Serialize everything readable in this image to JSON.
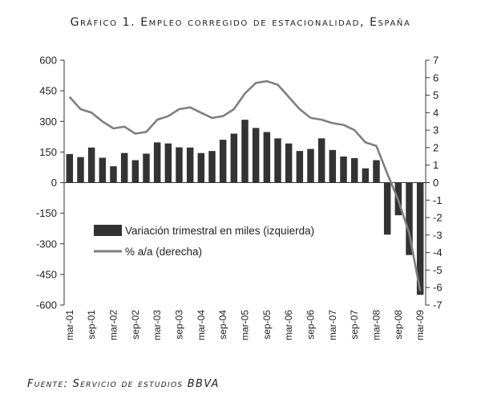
{
  "title": "Gráfico 1. Empleo corregido de estacionalidad, España",
  "source": "Fuente: Servicio de estudios BBVA",
  "chart_data": {
    "type": "bar",
    "quarters": [
      "mar-01",
      "jun-01",
      "sep-01",
      "dic-01",
      "mar-02",
      "jun-02",
      "sep-02",
      "dic-02",
      "mar-03",
      "jun-03",
      "sep-03",
      "dic-03",
      "mar-04",
      "jun-04",
      "sep-04",
      "dic-04",
      "mar-05",
      "jun-05",
      "sep-05",
      "dic-05",
      "mar-06",
      "jun-06",
      "sep-06",
      "dic-06",
      "mar-07",
      "jun-07",
      "sep-07",
      "dic-07",
      "mar-08",
      "jun-08",
      "sep-08",
      "dic-08",
      "mar-09"
    ],
    "x_tick_labels": [
      "mar-01",
      "sep-01",
      "mar-02",
      "sep-02",
      "mar-03",
      "sep-03",
      "mar-04",
      "sep-04",
      "mar-05",
      "sep-05",
      "mar-06",
      "sep-06",
      "mar-07",
      "sep-07",
      "mar-08",
      "sep-08",
      "mar-09"
    ],
    "series": [
      {
        "name": "Variación trimestral en miles (izquierda)",
        "type": "bar",
        "axis": "left",
        "color": "#333333",
        "values": [
          140,
          125,
          172,
          122,
          80,
          145,
          110,
          142,
          197,
          192,
          173,
          172,
          145,
          155,
          210,
          240,
          308,
          268,
          248,
          217,
          192,
          155,
          165,
          217,
          160,
          128,
          120,
          70,
          110,
          -255,
          -160,
          -355,
          -550
        ]
      },
      {
        "name": "% a/a (derecha)",
        "type": "line",
        "axis": "right",
        "color": "#7f7f7f",
        "values": [
          4.9,
          4.2,
          4.0,
          3.5,
          3.1,
          3.2,
          2.8,
          2.9,
          3.6,
          3.8,
          4.2,
          4.3,
          4.0,
          3.7,
          3.8,
          4.2,
          5.1,
          5.7,
          5.8,
          5.6,
          4.9,
          4.2,
          3.7,
          3.6,
          3.4,
          3.3,
          3.0,
          2.3,
          2.1,
          0.5,
          -1.0,
          -2.9,
          -6.2
        ]
      }
    ],
    "y_left": {
      "ylim": [
        -600,
        600
      ],
      "ticks": [
        "600",
        "450",
        "300",
        "150",
        "0",
        "-150",
        "-300",
        "-450",
        "-600"
      ]
    },
    "y_right": {
      "ylim": [
        -7,
        7
      ],
      "ticks": [
        "7",
        "6",
        "5",
        "4",
        "3",
        "2",
        "1",
        "0",
        "-1",
        "-2",
        "-3",
        "-4",
        "-5",
        "-6",
        "-7"
      ]
    },
    "legend_position": "lower-left inside plot",
    "grid": false
  }
}
